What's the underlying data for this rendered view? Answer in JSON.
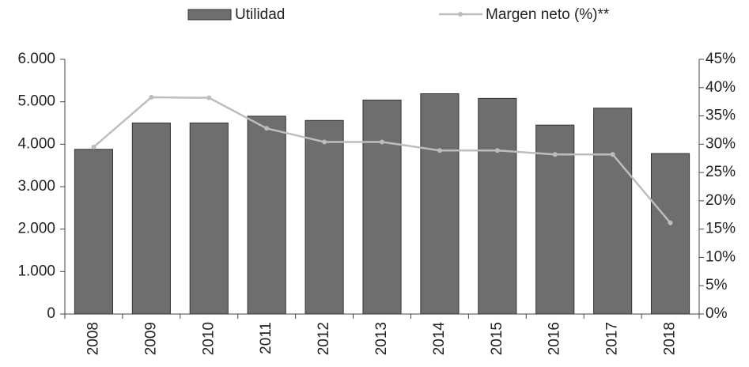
{
  "chart_data": {
    "type": "bar",
    "categories": [
      "2008",
      "2009",
      "2010",
      "2011",
      "2012",
      "2013",
      "2014",
      "2015",
      "2016",
      "2017",
      "2018"
    ],
    "series": [
      {
        "name": "Utilidad",
        "type": "bar",
        "color": "#6e6e6e",
        "values": [
          3880,
          4500,
          4500,
          4660,
          4560,
          5040,
          5190,
          5080,
          4450,
          4850,
          3780
        ]
      },
      {
        "name": "Margen neto (%)**",
        "type": "line",
        "axis": "y2",
        "color": "#bdbdbd",
        "values": [
          29.5,
          38.3,
          38.2,
          32.8,
          30.4,
          30.4,
          28.9,
          28.9,
          28.2,
          28.2,
          16.1
        ]
      }
    ],
    "ylim": [
      0,
      6000
    ],
    "yticks": [
      {
        "value": 0,
        "label": "0"
      },
      {
        "value": 1000,
        "label": "1.000"
      },
      {
        "value": 2000,
        "label": "2.000"
      },
      {
        "value": 3000,
        "label": "3.000"
      },
      {
        "value": 4000,
        "label": "4.000"
      },
      {
        "value": 5000,
        "label": "5.000"
      },
      {
        "value": 6000,
        "label": "6.000"
      }
    ],
    "y2lim": [
      0,
      45
    ],
    "y2ticks": [
      {
        "value": 0,
        "label": "0%"
      },
      {
        "value": 5,
        "label": "5%"
      },
      {
        "value": 10,
        "label": "10%"
      },
      {
        "value": 15,
        "label": "15%"
      },
      {
        "value": 20,
        "label": "20%"
      },
      {
        "value": 25,
        "label": "25%"
      },
      {
        "value": 30,
        "label": "30%"
      },
      {
        "value": 35,
        "label": "35%"
      },
      {
        "value": 40,
        "label": "40%"
      },
      {
        "value": 45,
        "label": "45%"
      }
    ],
    "legend": "top",
    "grid": false
  }
}
